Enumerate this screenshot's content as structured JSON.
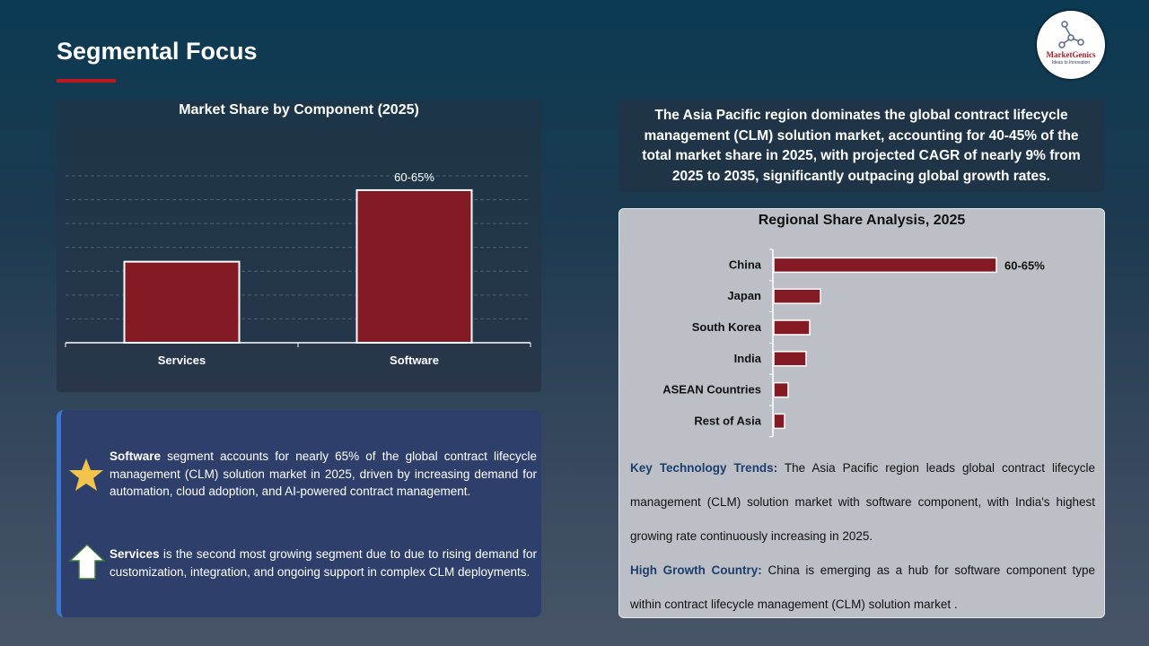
{
  "title": "Segmental Focus",
  "logo": {
    "name": "MarketGenics",
    "tagline": "Ideas to Innovation"
  },
  "colors": {
    "accent": "#c0161e",
    "bar": "#841a24"
  },
  "chart_data": [
    {
      "type": "bar",
      "title": "Market Share by Component (2025)",
      "categories": [
        "Services",
        "Software"
      ],
      "values": [
        34,
        64
      ],
      "data_labels": [
        "",
        "60-65%"
      ],
      "ylim": [
        0,
        70
      ],
      "grid": true,
      "unit": "%"
    },
    {
      "type": "bar",
      "orientation": "horizontal",
      "title": "Regional Share Analysis, 2025",
      "categories": [
        "China",
        "Japan",
        "South Korea",
        "India",
        "ASEAN Countries",
        "Rest of Asia"
      ],
      "values": [
        62,
        13,
        10,
        9,
        4,
        3
      ],
      "data_labels": [
        "60-65%",
        "",
        "",
        "",
        "",
        ""
      ],
      "xlim": [
        0,
        85
      ],
      "grid": false,
      "unit": "%"
    }
  ],
  "insights": [
    {
      "icon": "star-icon",
      "bold": "Software",
      "text": " segment accounts for nearly 65% of the global contract lifecycle management (CLM) solution market in 2025, driven by increasing demand for automation, cloud adoption, and AI-powered contract management."
    },
    {
      "icon": "arrow-up-icon",
      "bold": "Services",
      "text": " is the second most growing segment due to due to rising demand for customization, integration, and ongoing support in complex CLM deployments."
    }
  ],
  "summary": "The Asia Pacific region dominates the global contract lifecycle management (CLM) solution market, accounting for 40-45% of the total market share in 2025, with projected CAGR of nearly 9% from 2025 to 2035, significantly outpacing global growth rates.",
  "notes": [
    {
      "label": "Key Technology Trends:",
      "text": " The Asia Pacific region leads global contract lifecycle management (CLM) solution market with software component, with India's highest growing rate continuously increasing in 2025."
    },
    {
      "label": "High Growth Country:",
      "text": " China is emerging as a hub for software component type within contract lifecycle management (CLM) solution market ."
    }
  ]
}
